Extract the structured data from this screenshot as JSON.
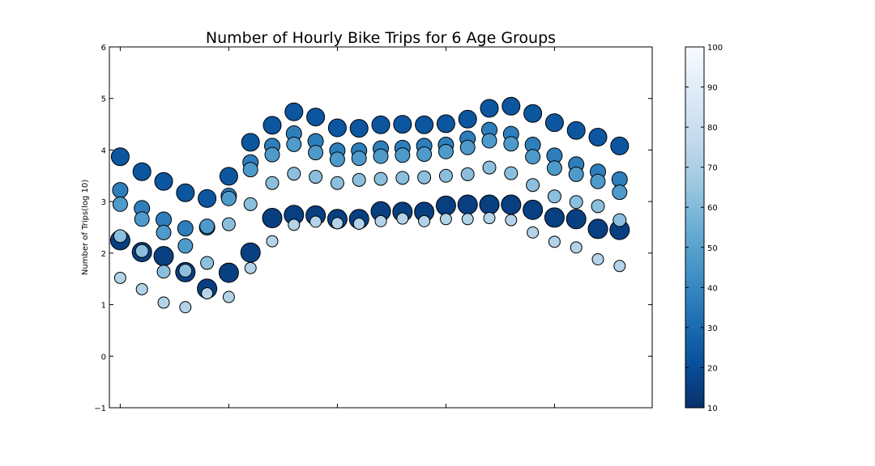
{
  "chart_data": {
    "type": "scatter",
    "title": "Number of Hourly Bike Trips for 6 Age Groups",
    "xlabel": "",
    "ylabel": "Number of Trips(log 10)",
    "ylim": [
      -1,
      6
    ],
    "yticks": [
      "−1",
      "0",
      "1",
      "2",
      "3",
      "4",
      "5",
      "6"
    ],
    "xlim": [
      -0.5,
      24.5
    ],
    "xticks_labeled": false,
    "colorbar": {
      "cmap": "Blues_r",
      "range": [
        10,
        100
      ],
      "ticks": [
        "10",
        "20",
        "30",
        "40",
        "50",
        "60",
        "70",
        "80",
        "90",
        "100"
      ]
    },
    "x": [
      0,
      1,
      2,
      3,
      4,
      5,
      6,
      7,
      8,
      9,
      10,
      11,
      12,
      13,
      14,
      15,
      16,
      17,
      18,
      19,
      20,
      21,
      22,
      23
    ],
    "series": [
      {
        "color_value": 15,
        "size": 24,
        "values": [
          2.25,
          2.02,
          1.94,
          1.63,
          1.31,
          1.62,
          2.01,
          2.68,
          2.74,
          2.73,
          2.66,
          2.66,
          2.81,
          2.8,
          2.8,
          2.92,
          2.94,
          2.94,
          2.94,
          2.84,
          2.69,
          2.66,
          2.47,
          2.45
        ]
      },
      {
        "color_value": 23,
        "size": 22,
        "values": [
          3.87,
          3.58,
          3.39,
          3.17,
          3.06,
          3.49,
          4.15,
          4.48,
          4.74,
          4.64,
          4.43,
          4.42,
          4.49,
          4.5,
          4.49,
          4.51,
          4.6,
          4.81,
          4.85,
          4.71,
          4.53,
          4.38,
          4.25,
          4.08
        ]
      },
      {
        "color_value": 37,
        "size": 19,
        "values": [
          3.22,
          2.87,
          2.65,
          2.48,
          2.5,
          3.11,
          3.76,
          4.08,
          4.32,
          4.17,
          3.99,
          3.99,
          4.03,
          4.04,
          4.08,
          4.1,
          4.22,
          4.39,
          4.31,
          4.1,
          3.89,
          3.72,
          3.58,
          3.43
        ]
      },
      {
        "color_value": 47,
        "size": 18,
        "values": [
          2.95,
          2.66,
          2.4,
          2.14,
          2.52,
          3.06,
          3.62,
          3.91,
          4.11,
          3.95,
          3.82,
          3.84,
          3.88,
          3.9,
          3.92,
          3.97,
          4.05,
          4.18,
          4.12,
          3.87,
          3.65,
          3.53,
          3.39,
          3.18
        ]
      },
      {
        "color_value": 62,
        "size": 16,
        "values": [
          2.33,
          2.04,
          1.64,
          1.66,
          1.81,
          2.56,
          2.95,
          3.36,
          3.54,
          3.48,
          3.36,
          3.42,
          3.44,
          3.46,
          3.47,
          3.5,
          3.53,
          3.66,
          3.55,
          3.32,
          3.1,
          2.99,
          2.91,
          2.64
        ]
      },
      {
        "color_value": 72,
        "size": 14,
        "values": [
          1.52,
          1.3,
          1.04,
          0.95,
          1.22,
          1.15,
          1.71,
          2.23,
          2.55,
          2.61,
          2.58,
          2.57,
          2.62,
          2.67,
          2.62,
          2.66,
          2.66,
          2.68,
          2.64,
          2.4,
          2.22,
          2.11,
          1.88,
          1.75
        ]
      }
    ]
  }
}
